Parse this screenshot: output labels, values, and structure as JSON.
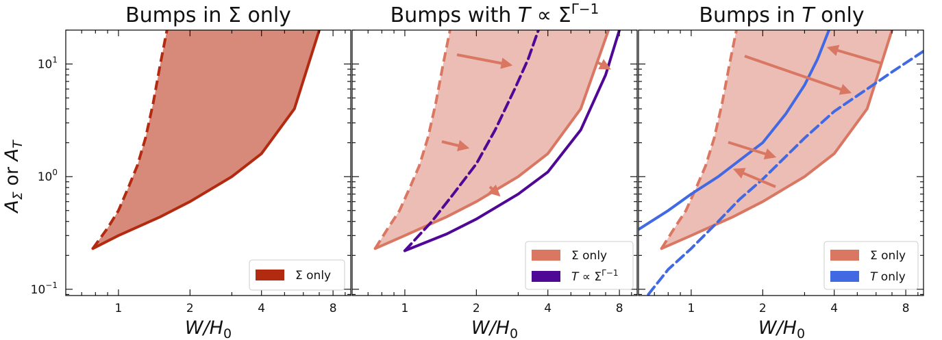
{
  "figure": {
    "ylabel": "A_Σ or A_T",
    "x_tick_labels": [
      "1",
      "2",
      "4",
      "8"
    ],
    "y_tick_labels": [
      {
        "base": "10",
        "exp": "1",
        "value": 10
      },
      {
        "base": "10",
        "exp": "0",
        "value": 1
      },
      {
        "base": "10",
        "exp": "−1",
        "value": 0.1
      }
    ]
  },
  "colors": {
    "sigma_dark": "#b22a10",
    "sigma_fill_dark": "#d78a7a",
    "sigma_light": "#d97763",
    "sigma_fill_light": "#ebbdb5",
    "purple": "#4f0896",
    "blue": "#4169e1"
  },
  "chart_data": [
    {
      "type": "area",
      "title": "Bumps in Σ only",
      "xlabel": "W/H_0",
      "ylabel": "A_Σ or A_T",
      "xscale": "log",
      "yscale": "log",
      "xlim": [
        0.6,
        9.5
      ],
      "ylim": [
        0.088,
        20
      ],
      "legend": {
        "position": "lower-right",
        "entries": [
          {
            "label": "Σ only",
            "color": "#b22a10"
          }
        ]
      },
      "series": [
        {
          "name": "Σ only",
          "role": "lower-solid",
          "x": [
            0.78,
            1.0,
            1.5,
            2.0,
            3.0,
            4.0,
            5.5,
            7.0
          ],
          "y": [
            0.23,
            0.3,
            0.44,
            0.6,
            1.0,
            1.6,
            4.0,
            20.0
          ]
        },
        {
          "name": "Σ only",
          "role": "upper-dashed",
          "x": [
            0.78,
            0.9,
            1.0,
            1.1,
            1.2,
            1.3,
            1.4,
            1.5,
            1.6
          ],
          "y": [
            0.23,
            0.35,
            0.5,
            0.8,
            1.25,
            2.2,
            4.5,
            10.0,
            20.0
          ]
        }
      ]
    },
    {
      "type": "area",
      "title": "Bumps with T ∝ Σ^(Γ−1)",
      "xlabel": "W/H_0",
      "xscale": "log",
      "yscale": "log",
      "xlim": [
        0.6,
        9.5
      ],
      "ylim": [
        0.088,
        20
      ],
      "legend": {
        "position": "lower-right",
        "entries": [
          {
            "label": "Σ only",
            "color": "#d97763"
          },
          {
            "label": "T ∝ Σ^(Γ−1)",
            "color": "#4f0896"
          }
        ]
      },
      "series": [
        {
          "name": "Σ only",
          "role": "lower-solid",
          "x": [
            0.75,
            1.0,
            1.5,
            2.0,
            3.0,
            4.0,
            5.5,
            7.2
          ],
          "y": [
            0.23,
            0.3,
            0.44,
            0.6,
            1.0,
            1.6,
            4.0,
            20.0
          ]
        },
        {
          "name": "Σ only",
          "role": "upper-dashed",
          "x": [
            0.75,
            0.85,
            0.95,
            1.05,
            1.15,
            1.25,
            1.35,
            1.45,
            1.55
          ],
          "y": [
            0.23,
            0.35,
            0.5,
            0.8,
            1.25,
            2.2,
            4.5,
            10.0,
            20.0
          ]
        },
        {
          "name": "T ∝ Σ^(Γ−1)",
          "role": "solid",
          "x": [
            1.0,
            1.5,
            2.0,
            3.0,
            4.0,
            5.5,
            7.0,
            8.0
          ],
          "y": [
            0.22,
            0.31,
            0.42,
            0.7,
            1.1,
            2.6,
            8.0,
            20.0
          ]
        },
        {
          "name": "T ∝ Σ^(Γ−1)",
          "role": "dashed",
          "x": [
            1.0,
            1.3,
            1.6,
            2.0,
            2.4,
            2.9,
            3.3,
            3.65
          ],
          "y": [
            0.22,
            0.4,
            0.7,
            1.3,
            2.6,
            6.0,
            11.0,
            20.0
          ]
        }
      ]
    },
    {
      "type": "area",
      "title": "Bumps in T only",
      "xlabel": "W/H_0",
      "xscale": "log",
      "yscale": "log",
      "xlim": [
        0.6,
        9.5
      ],
      "ylim": [
        0.088,
        20
      ],
      "legend": {
        "position": "lower-right",
        "entries": [
          {
            "label": "Σ only",
            "color": "#d97763"
          },
          {
            "label": "T only",
            "color": "#4169e1"
          }
        ]
      },
      "series": [
        {
          "name": "Σ only",
          "role": "lower-solid",
          "x": [
            0.75,
            1.0,
            1.5,
            2.0,
            3.0,
            4.0,
            5.5,
            7.0
          ],
          "y": [
            0.23,
            0.3,
            0.44,
            0.6,
            1.0,
            1.6,
            4.0,
            20.0
          ]
        },
        {
          "name": "Σ only",
          "role": "upper-dashed",
          "x": [
            0.75,
            0.85,
            0.95,
            1.05,
            1.15,
            1.25,
            1.35,
            1.45,
            1.55
          ],
          "y": [
            0.23,
            0.35,
            0.5,
            0.8,
            1.25,
            2.2,
            4.5,
            10.0,
            20.0
          ]
        },
        {
          "name": "T only",
          "role": "solid",
          "x": [
            0.6,
            0.8,
            1.0,
            1.3,
            1.6,
            2.0,
            2.5,
            3.0,
            3.4,
            3.8
          ],
          "y": [
            0.34,
            0.5,
            0.7,
            1.0,
            1.4,
            2.0,
            3.6,
            6.5,
            11.0,
            20.0
          ]
        },
        {
          "name": "T only",
          "role": "dashed",
          "x": [
            0.66,
            0.8,
            1.0,
            1.3,
            1.6,
            2.0,
            3.0,
            4.0,
            5.5,
            7.0,
            9.5
          ],
          "y": [
            0.09,
            0.15,
            0.23,
            0.4,
            0.63,
            0.95,
            2.2,
            3.8,
            6.0,
            8.5,
            13.0
          ]
        }
      ]
    }
  ]
}
